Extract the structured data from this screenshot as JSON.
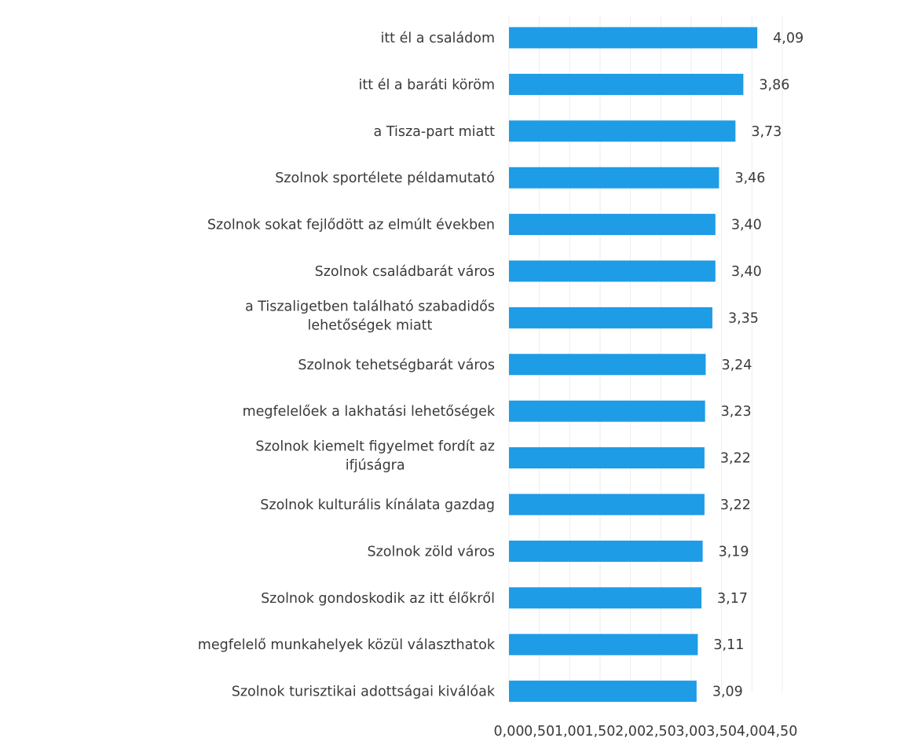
{
  "chart_data": {
    "type": "bar",
    "orientation": "horizontal",
    "title": "",
    "xlabel": "",
    "ylabel": "",
    "xlim": [
      0,
      4.5
    ],
    "ticks": [
      0,
      0.5,
      1.0,
      1.5,
      2.0,
      2.5,
      3.0,
      3.5,
      4.0,
      4.5
    ],
    "tick_labels": [
      "0,00",
      "0,50",
      "1,00",
      "1,50",
      "2,00",
      "2,50",
      "3,00",
      "3,50",
      "4,00",
      "4,50"
    ],
    "grid": true,
    "bar_color": "#1f9ce6",
    "categories": [
      [
        "itt él a családom"
      ],
      [
        "itt él a baráti köröm"
      ],
      [
        "a Tisza-part miatt"
      ],
      [
        "Szolnok sportélete példamutató"
      ],
      [
        "Szolnok sokat fejlődött az elmúlt években"
      ],
      [
        "Szolnok családbarát város"
      ],
      [
        "a Tiszaligetben található szabadidős",
        "lehetőségek miatt"
      ],
      [
        "Szolnok tehetségbarát város"
      ],
      [
        "megfelelőek a lakhatási lehetőségek"
      ],
      [
        "Szolnok kiemelt figyelmet fordít az",
        "ifjúságra"
      ],
      [
        "Szolnok kulturális kínálata gazdag"
      ],
      [
        "Szolnok zöld város"
      ],
      [
        "Szolnok gondoskodik az itt élőkről"
      ],
      [
        "megfelelő munkahelyek közül választhatok"
      ],
      [
        "Szolnok turisztikai adottságai kiválóak"
      ]
    ],
    "values": [
      4.09,
      3.86,
      3.73,
      3.46,
      3.4,
      3.4,
      3.35,
      3.24,
      3.23,
      3.22,
      3.22,
      3.19,
      3.17,
      3.11,
      3.09
    ],
    "value_labels": [
      "4,09",
      "3,86",
      "3,73",
      "3,46",
      "3,40",
      "3,40",
      "3,35",
      "3,24",
      "3,23",
      "3,22",
      "3,22",
      "3,19",
      "3,17",
      "3,11",
      "3,09"
    ]
  }
}
